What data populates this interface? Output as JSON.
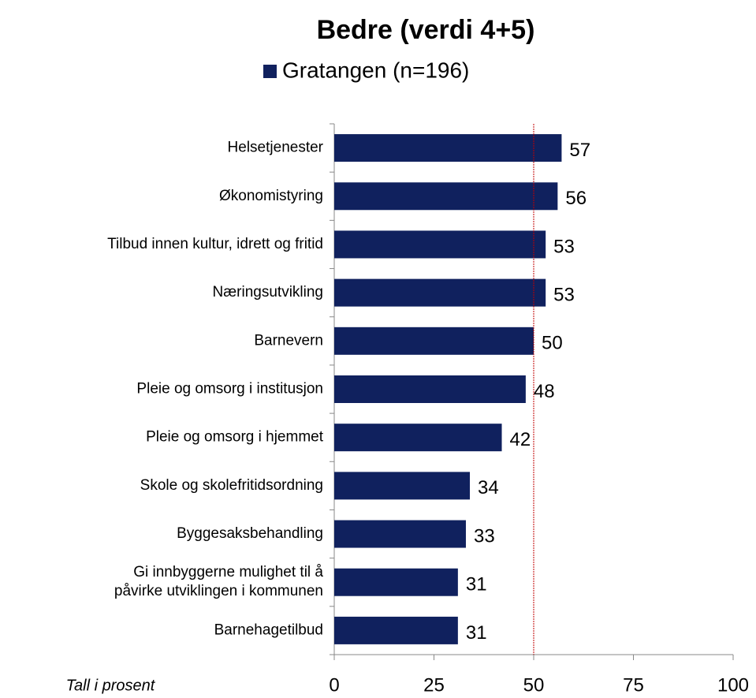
{
  "chart_data": {
    "type": "bar",
    "orientation": "horizontal",
    "title": "Bedre (verdi 4+5)",
    "note": "Tall i prosent",
    "categories": [
      "Helsetjenester",
      "Økonomistyring",
      "Tilbud innen kultur, idrett og fritid",
      "Næringsutvikling",
      "Barnevern",
      "Pleie og omsorg i institusjon",
      "Pleie og omsorg i hjemmet",
      "Skole og skolefritidsordning",
      "Byggesaksbehandling",
      "Gi innbyggerne mulighet til å\npåvirke utviklingen i kommunen",
      "Barnehagetilbud"
    ],
    "series": [
      {
        "name": "Gratangen (n=196)",
        "color": "#10215e",
        "values": [
          57,
          56,
          53,
          53,
          50,
          48,
          42,
          34,
          33,
          31,
          31
        ]
      }
    ],
    "xlim": [
      0,
      100
    ],
    "xticks": [
      0,
      25,
      50,
      75,
      100
    ],
    "reference_line": {
      "value": 50,
      "color": "#c00000"
    }
  }
}
